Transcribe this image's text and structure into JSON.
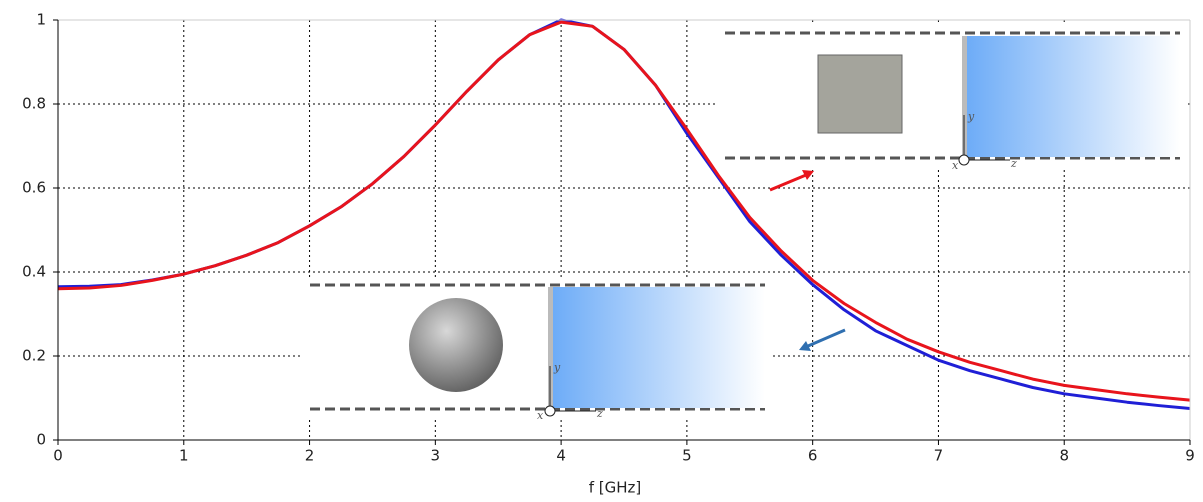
{
  "chart_data": {
    "type": "line",
    "xlabel": "f [GHz]",
    "x": [
      0,
      0.25,
      0.5,
      0.75,
      1,
      1.25,
      1.5,
      1.75,
      2,
      2.25,
      2.5,
      2.75,
      3,
      3.25,
      3.5,
      3.75,
      4,
      4.25,
      4.5,
      4.75,
      5,
      5.25,
      5.5,
      5.75,
      6,
      6.25,
      6.5,
      6.75,
      7,
      7.25,
      7.5,
      7.75,
      8,
      8.25,
      8.5,
      8.75,
      9
    ],
    "series": [
      {
        "color": "#1f1fd6",
        "values": [
          0.365,
          0.366,
          0.37,
          0.381,
          0.395,
          0.415,
          0.44,
          0.47,
          0.51,
          0.555,
          0.61,
          0.675,
          0.75,
          0.83,
          0.905,
          0.965,
          1.0,
          0.985,
          0.93,
          0.845,
          0.73,
          0.625,
          0.52,
          0.44,
          0.37,
          0.31,
          0.26,
          0.225,
          0.19,
          0.165,
          0.145,
          0.125,
          0.11,
          0.1,
          0.09,
          0.082,
          0.075
        ]
      },
      {
        "color": "#e8141c",
        "values": [
          0.36,
          0.362,
          0.368,
          0.38,
          0.395,
          0.415,
          0.44,
          0.47,
          0.51,
          0.555,
          0.61,
          0.675,
          0.75,
          0.83,
          0.905,
          0.965,
          0.995,
          0.985,
          0.93,
          0.845,
          0.74,
          0.63,
          0.53,
          0.45,
          0.38,
          0.325,
          0.28,
          0.24,
          0.21,
          0.185,
          0.165,
          0.145,
          0.13,
          0.12,
          0.11,
          0.102,
          0.095
        ]
      }
    ],
    "xlim": [
      0,
      9
    ],
    "ylim": [
      0,
      1
    ],
    "xticks": [
      0,
      1,
      2,
      3,
      4,
      5,
      6,
      7,
      8,
      9
    ],
    "yticks": [
      0,
      0.2,
      0.4,
      0.6,
      0.8,
      1
    ],
    "grid": true,
    "inset_labels": {
      "top": [
        "x",
        "y",
        "z"
      ],
      "bottom": [
        "x",
        "y",
        "z"
      ]
    }
  }
}
